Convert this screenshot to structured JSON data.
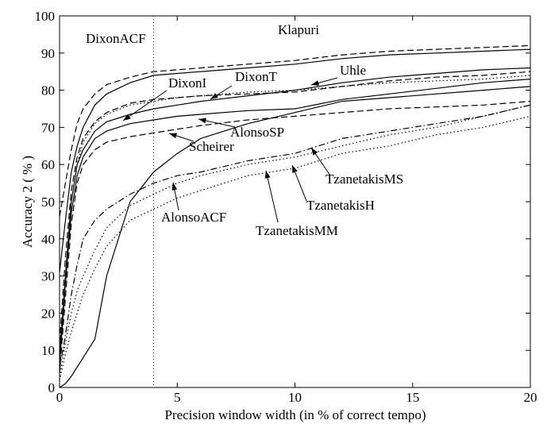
{
  "chart_data": {
    "type": "line",
    "x_label": "Precision window width (in % of correct tempo)",
    "y_label": "Accuracy 2 ( % )",
    "xlim": [
      0,
      20
    ],
    "ylim": [
      0,
      100
    ],
    "xticks": [
      0,
      5,
      10,
      15,
      20
    ],
    "yticks": [
      0,
      10,
      20,
      30,
      40,
      50,
      60,
      70,
      80,
      90,
      100
    ],
    "reference_x": 4,
    "x": [
      0,
      0.25,
      0.5,
      0.75,
      1,
      1.5,
      2,
      3,
      4,
      5,
      6,
      8,
      10,
      12,
      14,
      16,
      18,
      20
    ],
    "series": [
      {
        "name": "Klapuri",
        "color": "#000000",
        "line_style": "dashed",
        "values": [
          46,
          55,
          64,
          71,
          75,
          79,
          81.5,
          83.5,
          85,
          85.5,
          86,
          87,
          88,
          89.5,
          90.5,
          91,
          91.5,
          92
        ]
      },
      {
        "name": "DixonACF",
        "color": "#000000",
        "line_style": "solid",
        "values": [
          31,
          45,
          58,
          65,
          70,
          76,
          79,
          82,
          84,
          84.5,
          85,
          86,
          87,
          88.5,
          89.5,
          90,
          90.5,
          91
        ]
      },
      {
        "name": "DixonI",
        "color": "#000000",
        "line_style": "dotted",
        "values": [
          10,
          30,
          50,
          60,
          66,
          71,
          73.5,
          76,
          77,
          78,
          78.5,
          79.5,
          80,
          81,
          82,
          82.5,
          83,
          84
        ]
      },
      {
        "name": "DixonT",
        "color": "#000000",
        "line_style": "dashed",
        "values": [
          12,
          35,
          53,
          62,
          67,
          71.5,
          74,
          76.5,
          77.5,
          78,
          78.5,
          79,
          79.5,
          81,
          82.5,
          83.5,
          84,
          85
        ]
      },
      {
        "name": "Uhle",
        "color": "#000000",
        "line_style": "solid",
        "values": [
          8,
          30,
          50,
          60,
          64,
          69,
          71.5,
          73.5,
          75,
          76,
          77,
          78.5,
          80,
          82,
          83.5,
          84.5,
          85.5,
          86
        ]
      },
      {
        "name": "AlonsoSP",
        "color": "#000000",
        "line_style": "solid",
        "values": [
          6,
          28,
          47,
          57,
          62,
          67,
          69,
          71,
          72,
          73,
          73.5,
          74.5,
          75,
          77.5,
          79,
          80.5,
          82,
          83
        ]
      },
      {
        "name": "Scheirer",
        "color": "#000000",
        "line_style": "dashed",
        "values": [
          4,
          24,
          44,
          55,
          60,
          64,
          66,
          67.5,
          68.5,
          69.5,
          70.5,
          72,
          73,
          74,
          75,
          75.5,
          76,
          77
        ]
      },
      {
        "name": "AlonsoACF",
        "color": "#000000",
        "line_style": "solid",
        "values": [
          0,
          1,
          3,
          5.5,
          8,
          13,
          30,
          50,
          58,
          63,
          67,
          71,
          74,
          77,
          78,
          79,
          80,
          81
        ]
      },
      {
        "name": "TzanetakisMS",
        "color": "#000000",
        "line_style": "dashdot",
        "values": [
          5,
          14,
          25,
          33,
          40,
          45,
          48,
          52,
          55,
          57,
          58,
          61,
          63,
          67,
          69,
          71,
          73,
          76
        ]
      },
      {
        "name": "TzanetakisH",
        "color": "#000000",
        "line_style": "dotted",
        "values": [
          3,
          12,
          20,
          26,
          30,
          37,
          43,
          49,
          52,
          55,
          57,
          60,
          62,
          65,
          68,
          70,
          73,
          76
        ]
      },
      {
        "name": "TzanetakisMM",
        "color": "#000000",
        "line_style": "dotted",
        "values": [
          2,
          9,
          15,
          20,
          25,
          32,
          38,
          45,
          48,
          51,
          53,
          57,
          59,
          63,
          65,
          68,
          70,
          73
        ]
      }
    ]
  }
}
